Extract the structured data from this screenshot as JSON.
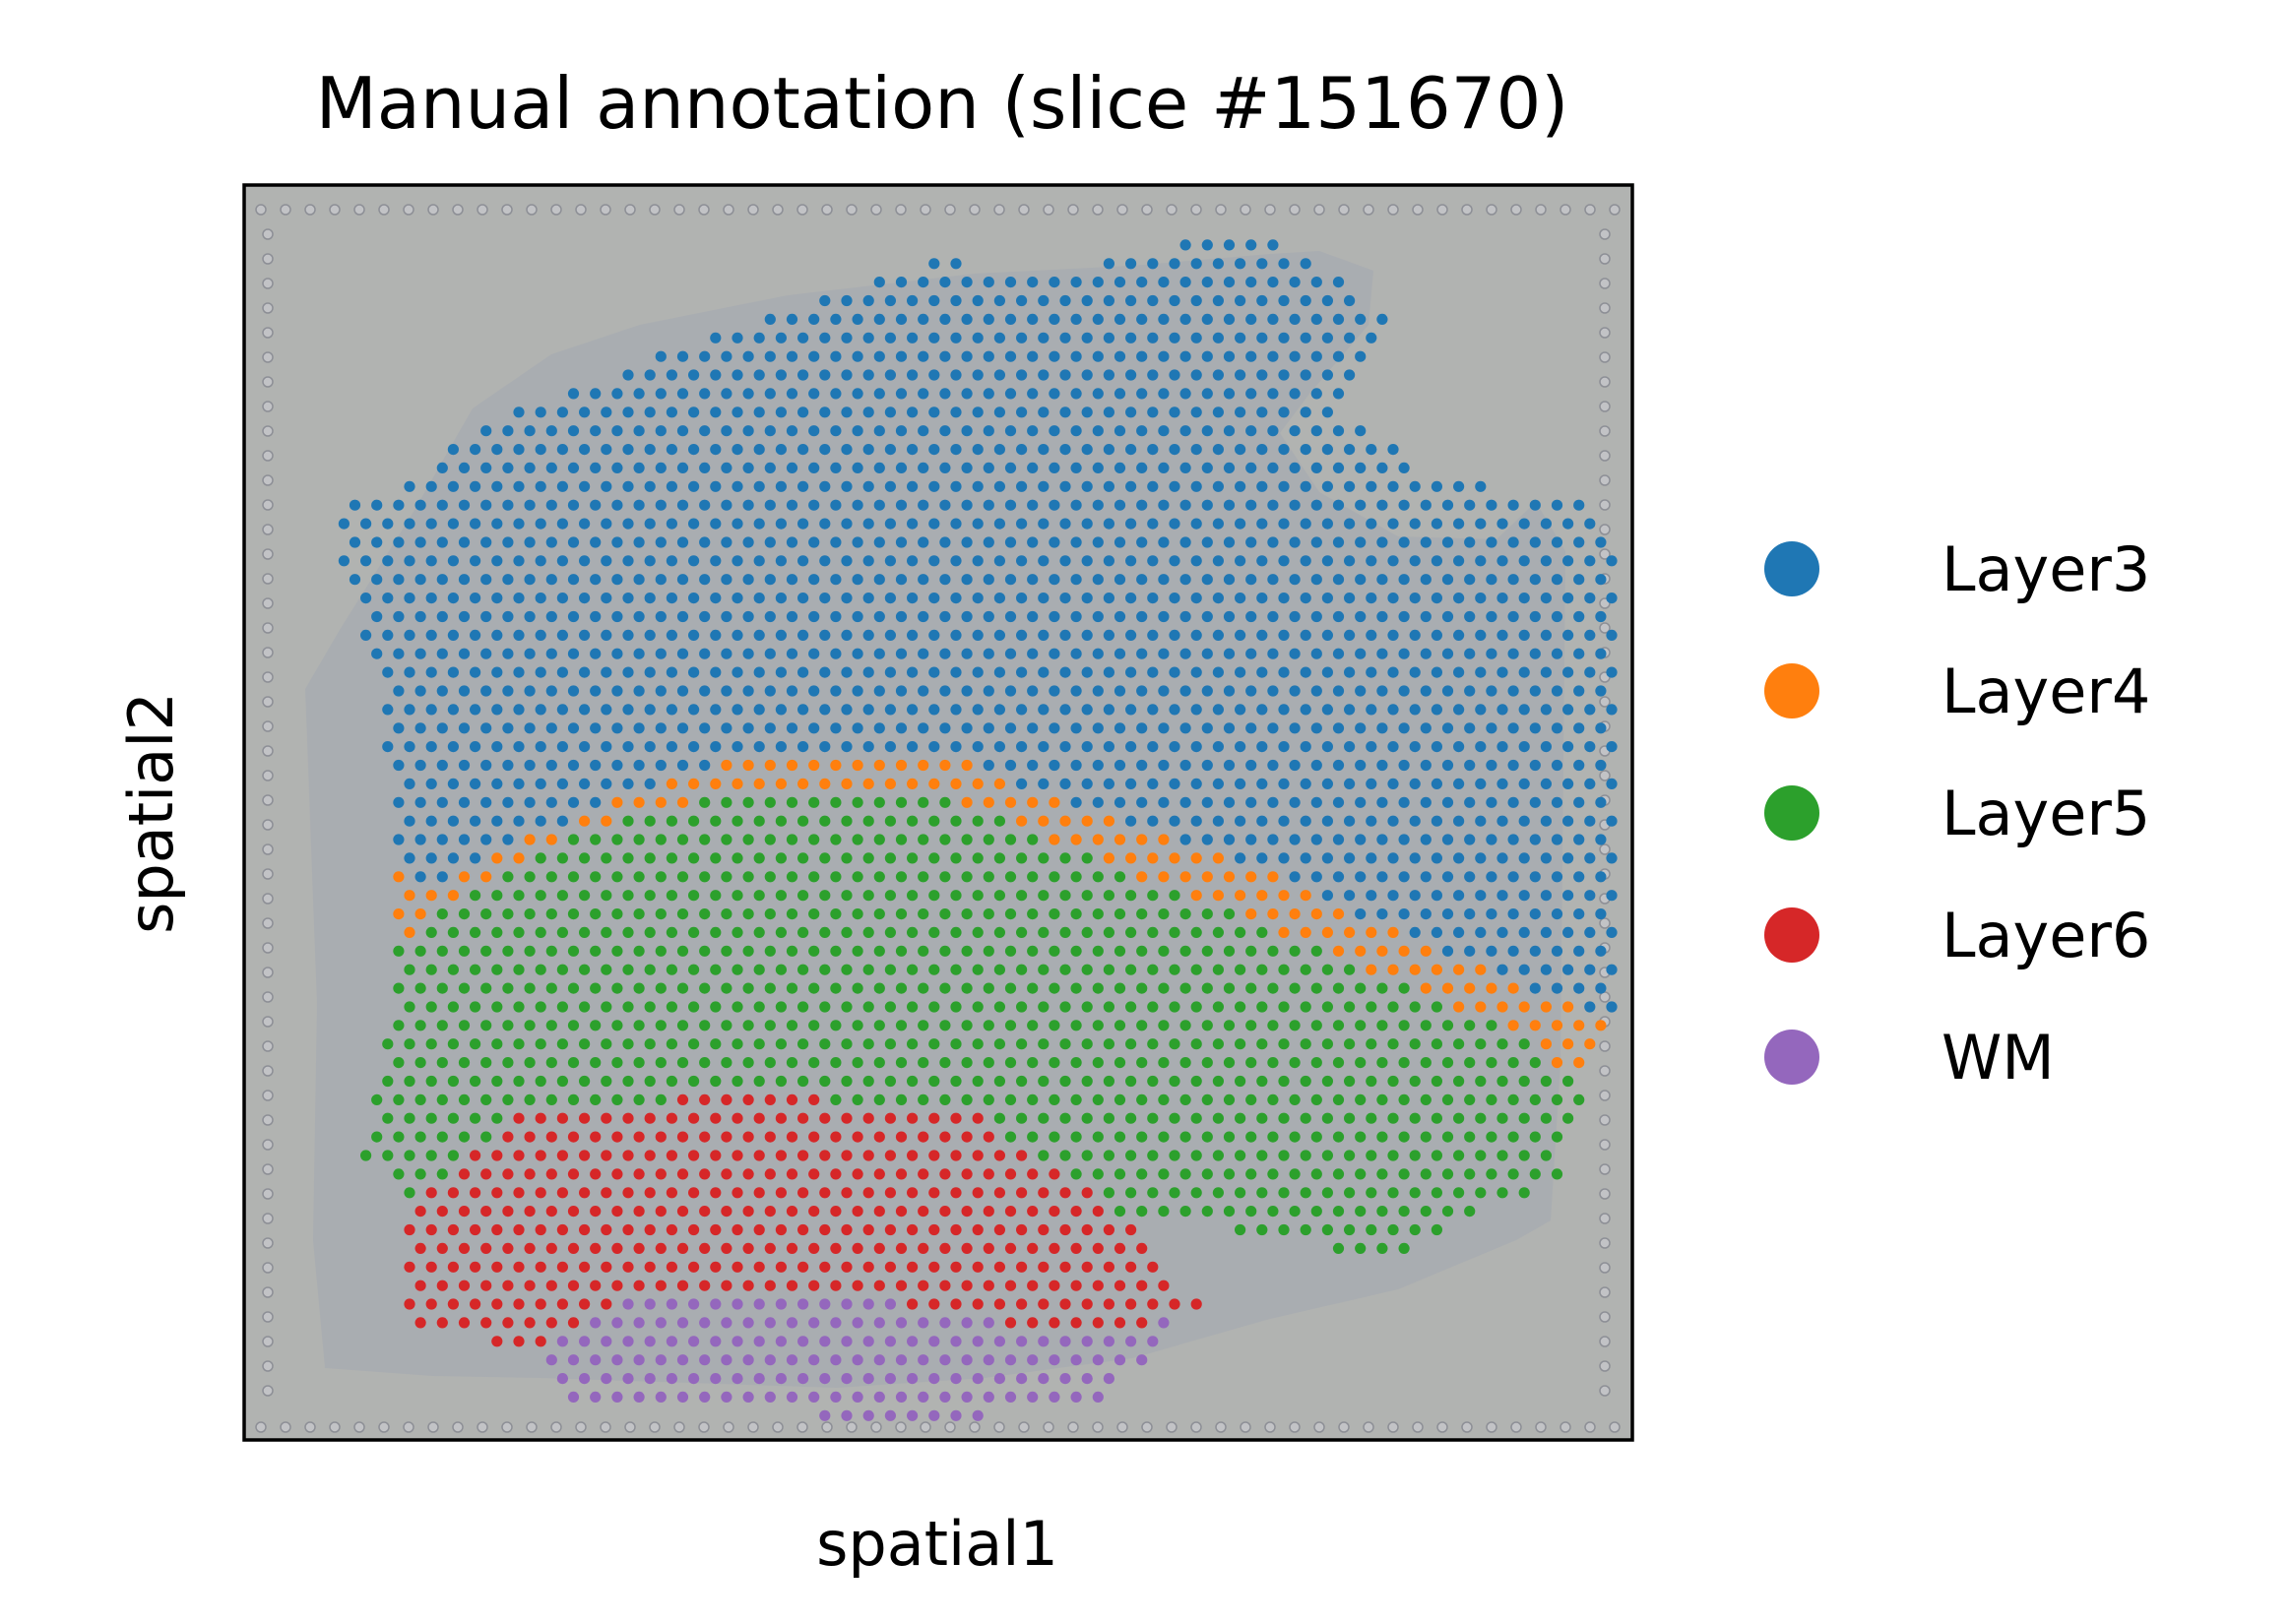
{
  "chart_data": {
    "type": "scatter",
    "title": "Manual annotation (slice #151670)",
    "xlabel": "spatial1",
    "ylabel": "spatial2",
    "xticks": [],
    "yticks": [],
    "background": "tissue histology image (H&E) behind spots",
    "legend_position": "right, outside plot",
    "series": [
      {
        "name": "Layer3",
        "color": "#1f77b4",
        "regions": [
          [
            [
              85,
              20
            ],
            [
              115,
              7
            ],
            [
              140,
              10
            ],
            [
              168,
              2
            ],
            [
              185,
              5
            ],
            [
              200,
              22
            ],
            [
              190,
              40
            ],
            [
              210,
              55
            ],
            [
              235,
              58
            ],
            [
              242,
              68
            ],
            [
              242,
              170
            ],
            [
              226,
              165
            ],
            [
              175,
              138
            ],
            [
              120,
              115
            ],
            [
              80,
              115
            ],
            [
              55,
              125
            ],
            [
              30,
              138
            ],
            [
              22,
              145
            ],
            [
              18,
              133
            ],
            [
              14,
              96
            ],
            [
              10,
              82
            ],
            [
              6,
              62
            ],
            [
              20,
              55
            ],
            [
              30,
              45
            ],
            [
              50,
              35
            ],
            [
              70,
              26
            ]
          ]
        ]
      },
      {
        "name": "Layer4",
        "color": "#ff7f0e",
        "regions": [
          [
            [
              18,
              140
            ],
            [
              28,
              130
            ],
            [
              55,
              115
            ],
            [
              80,
              107
            ],
            [
              120,
              110
            ],
            [
              170,
              130
            ],
            [
              220,
              150
            ],
            [
              240,
              168
            ],
            [
              235,
              185
            ],
            [
              220,
              172
            ],
            [
              175,
              150
            ],
            [
              120,
              124
            ],
            [
              80,
              122
            ],
            [
              50,
              130
            ],
            [
              28,
              145
            ],
            [
              18,
              155
            ]
          ]
        ]
      },
      {
        "name": "Layer5",
        "color": "#2ca02c",
        "regions": [
          [
            [
              18,
              155
            ],
            [
              28,
              145
            ],
            [
              50,
              130
            ],
            [
              80,
              122
            ],
            [
              120,
              124
            ],
            [
              175,
              150
            ],
            [
              220,
              172
            ],
            [
              235,
              185
            ],
            [
              230,
              205
            ],
            [
              200,
              222
            ],
            [
              150,
              212
            ],
            [
              125,
              192
            ],
            [
              80,
              186
            ],
            [
              40,
              192
            ],
            [
              20,
              212
            ],
            [
              12,
              200
            ]
          ]
        ]
      },
      {
        "name": "Layer6",
        "color": "#d62728",
        "regions": [
          [
            [
              20,
              212
            ],
            [
              40,
              192
            ],
            [
              80,
              186
            ],
            [
              125,
              192
            ],
            [
              150,
              212
            ],
            [
              165,
              232
            ],
            [
              145,
              240
            ],
            [
              100,
              230
            ],
            [
              60,
              232
            ],
            [
              45,
              242
            ],
            [
              20,
              238
            ]
          ]
        ]
      },
      {
        "name": "WM",
        "color": "#9467bd",
        "regions": [
          [
            [
              45,
              242
            ],
            [
              60,
              232
            ],
            [
              100,
              230
            ],
            [
              145,
              240
            ],
            [
              165,
              232
            ],
            [
              145,
              254
            ],
            [
              110,
              258
            ],
            [
              80,
              254
            ],
            [
              50,
              252
            ]
          ]
        ]
      }
    ]
  }
}
